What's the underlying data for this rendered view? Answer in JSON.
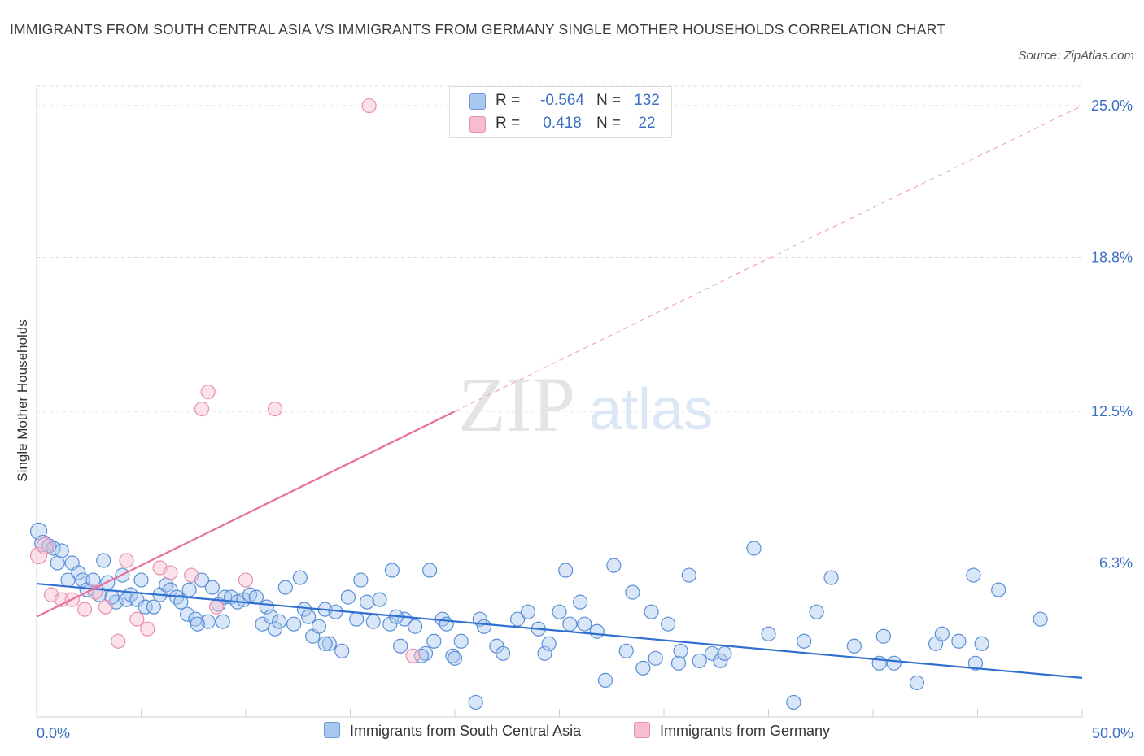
{
  "title": "IMMIGRANTS FROM SOUTH CENTRAL ASIA VS IMMIGRANTS FROM GERMANY SINGLE MOTHER HOUSEHOLDS CORRELATION CHART",
  "source": "Source: ZipAtlas.com",
  "watermark": {
    "zip": "ZIP",
    "atlas": "atlas"
  },
  "legend": {
    "rows": [
      {
        "r_label": "R =",
        "r_value": "-0.564",
        "n_label": "N =",
        "n_value": "132"
      },
      {
        "r_label": "R =",
        "r_value": "0.418",
        "n_label": "N =",
        "n_value": "22"
      }
    ]
  },
  "colors": {
    "blue": "#3a6fc4",
    "blue_fill": "#a9c8f0",
    "blue_line": "#2f6fd0",
    "pink": "#e8709a",
    "pink_fill": "#f6bcd0",
    "grid": "#d9d9d9"
  },
  "chart_data": {
    "type": "scatter",
    "title": "IMMIGRANTS FROM SOUTH CENTRAL ASIA VS IMMIGRANTS FROM GERMANY SINGLE MOTHER HOUSEHOLDS CORRELATION CHART",
    "xlabel": "",
    "ylabel": "Single Mother Households",
    "xlim": [
      0,
      50
    ],
    "ylim": [
      0,
      25.8
    ],
    "x_tick_labels": [
      "0.0%",
      "50.0%"
    ],
    "y_ticks": [
      6.3,
      12.5,
      18.8,
      25.0
    ],
    "y_tick_labels": [
      "6.3%",
      "12.5%",
      "18.8%",
      "25.0%"
    ],
    "grid": true,
    "legend_position": "top-center",
    "series": [
      {
        "name": "Immigrants from South Central Asia",
        "color": "#3a6fc4",
        "trend": {
          "x": [
            0,
            50
          ],
          "y": [
            5.45,
            1.6
          ],
          "style": "solid"
        },
        "points": [
          [
            0.1,
            7.6
          ],
          [
            0.3,
            7.1
          ],
          [
            0.6,
            7.0
          ],
          [
            0.8,
            6.9
          ],
          [
            1.0,
            6.3
          ],
          [
            1.2,
            6.8
          ],
          [
            1.5,
            5.6
          ],
          [
            1.7,
            6.3
          ],
          [
            2.0,
            5.9
          ],
          [
            2.2,
            5.6
          ],
          [
            2.4,
            5.2
          ],
          [
            2.7,
            5.6
          ],
          [
            3.0,
            5.0
          ],
          [
            3.2,
            6.4
          ],
          [
            3.4,
            5.5
          ],
          [
            3.8,
            4.7
          ],
          [
            4.1,
            5.8
          ],
          [
            4.3,
            4.8
          ],
          [
            4.5,
            5.0
          ],
          [
            4.8,
            4.8
          ],
          [
            5.0,
            5.6
          ],
          [
            5.2,
            4.5
          ],
          [
            5.6,
            4.5
          ],
          [
            5.9,
            5.0
          ],
          [
            6.2,
            5.4
          ],
          [
            6.4,
            5.2
          ],
          [
            6.7,
            4.9
          ],
          [
            6.9,
            4.7
          ],
          [
            7.2,
            4.2
          ],
          [
            7.3,
            5.2
          ],
          [
            7.6,
            4.0
          ],
          [
            7.9,
            5.6
          ],
          [
            8.2,
            3.9
          ],
          [
            8.4,
            5.3
          ],
          [
            8.7,
            4.6
          ],
          [
            9.0,
            4.9
          ],
          [
            9.3,
            4.9
          ],
          [
            9.6,
            4.7
          ],
          [
            9.9,
            4.8
          ],
          [
            10.2,
            5.0
          ],
          [
            10.5,
            4.9
          ],
          [
            10.8,
            3.8
          ],
          [
            11.0,
            4.5
          ],
          [
            11.2,
            4.1
          ],
          [
            11.4,
            3.6
          ],
          [
            11.9,
            5.3
          ],
          [
            12.3,
            3.8
          ],
          [
            12.6,
            5.7
          ],
          [
            12.8,
            4.4
          ],
          [
            13.0,
            4.1
          ],
          [
            13.2,
            3.3
          ],
          [
            13.5,
            3.7
          ],
          [
            13.8,
            4.4
          ],
          [
            14.0,
            3.0
          ],
          [
            14.3,
            4.3
          ],
          [
            14.6,
            2.7
          ],
          [
            14.9,
            4.9
          ],
          [
            15.3,
            4.0
          ],
          [
            15.5,
            5.6
          ],
          [
            15.8,
            4.7
          ],
          [
            16.1,
            3.9
          ],
          [
            16.4,
            4.8
          ],
          [
            16.9,
            3.8
          ],
          [
            17.0,
            6.0
          ],
          [
            17.4,
            2.9
          ],
          [
            17.6,
            4.0
          ],
          [
            18.1,
            3.7
          ],
          [
            18.6,
            2.6
          ],
          [
            18.8,
            6.0
          ],
          [
            19.0,
            3.1
          ],
          [
            19.4,
            4.0
          ],
          [
            19.6,
            3.8
          ],
          [
            19.9,
            2.5
          ],
          [
            20.3,
            3.1
          ],
          [
            21.2,
            4.0
          ],
          [
            21.4,
            3.7
          ],
          [
            22.0,
            2.9
          ],
          [
            22.3,
            2.6
          ],
          [
            23.0,
            4.0
          ],
          [
            23.5,
            4.3
          ],
          [
            24.0,
            3.6
          ],
          [
            24.3,
            2.6
          ],
          [
            24.5,
            3.0
          ],
          [
            25.0,
            4.3
          ],
          [
            25.3,
            6.0
          ],
          [
            25.5,
            3.8
          ],
          [
            26.0,
            4.7
          ],
          [
            26.2,
            3.8
          ],
          [
            26.8,
            3.5
          ],
          [
            27.2,
            1.5
          ],
          [
            27.6,
            6.2
          ],
          [
            28.2,
            2.7
          ],
          [
            28.5,
            5.1
          ],
          [
            29.0,
            2.0
          ],
          [
            29.4,
            4.3
          ],
          [
            29.6,
            2.4
          ],
          [
            30.2,
            3.8
          ],
          [
            30.7,
            2.2
          ],
          [
            30.8,
            2.7
          ],
          [
            31.2,
            5.8
          ],
          [
            31.7,
            2.3
          ],
          [
            32.3,
            2.6
          ],
          [
            32.7,
            2.3
          ],
          [
            32.9,
            2.6
          ],
          [
            34.3,
            6.9
          ],
          [
            35.0,
            3.4
          ],
          [
            36.2,
            0.6
          ],
          [
            36.7,
            3.1
          ],
          [
            37.3,
            4.3
          ],
          [
            38.0,
            5.7
          ],
          [
            39.1,
            2.9
          ],
          [
            40.3,
            2.2
          ],
          [
            40.5,
            3.3
          ],
          [
            41.0,
            2.2
          ],
          [
            42.1,
            1.4
          ],
          [
            43.0,
            3.0
          ],
          [
            43.3,
            3.4
          ],
          [
            44.1,
            3.1
          ],
          [
            44.8,
            5.8
          ],
          [
            44.9,
            2.2
          ],
          [
            45.2,
            3.0
          ],
          [
            46.0,
            5.2
          ],
          [
            48.0,
            4.0
          ],
          [
            18.4,
            2.5
          ],
          [
            20.0,
            2.4
          ],
          [
            11.6,
            3.9
          ],
          [
            17.2,
            4.1
          ],
          [
            8.9,
            3.9
          ],
          [
            13.8,
            3.0
          ],
          [
            21.0,
            0.6
          ],
          [
            7.7,
            3.8
          ],
          [
            3.6,
            4.9
          ]
        ]
      },
      {
        "name": "Immigrants from Germany",
        "color": "#e8709a",
        "trend": {
          "x": [
            0,
            20
          ],
          "y": [
            4.1,
            12.5
          ],
          "style": "solid"
        },
        "trend_extension": {
          "x": [
            20,
            50
          ],
          "y": [
            12.5,
            25.0
          ],
          "style": "dashed"
        },
        "points": [
          [
            0.1,
            6.6
          ],
          [
            0.4,
            7.0
          ],
          [
            0.7,
            5.0
          ],
          [
            1.2,
            4.8
          ],
          [
            1.7,
            4.8
          ],
          [
            2.3,
            4.4
          ],
          [
            2.8,
            5.1
          ],
          [
            3.3,
            4.5
          ],
          [
            3.9,
            3.1
          ],
          [
            4.3,
            6.4
          ],
          [
            4.8,
            4.0
          ],
          [
            5.3,
            3.6
          ],
          [
            5.9,
            6.1
          ],
          [
            6.4,
            5.9
          ],
          [
            7.4,
            5.8
          ],
          [
            7.9,
            12.6
          ],
          [
            8.2,
            13.3
          ],
          [
            8.6,
            4.5
          ],
          [
            10.0,
            5.6
          ],
          [
            11.4,
            12.6
          ],
          [
            15.9,
            25.0
          ],
          [
            18.0,
            2.5
          ]
        ]
      }
    ]
  }
}
